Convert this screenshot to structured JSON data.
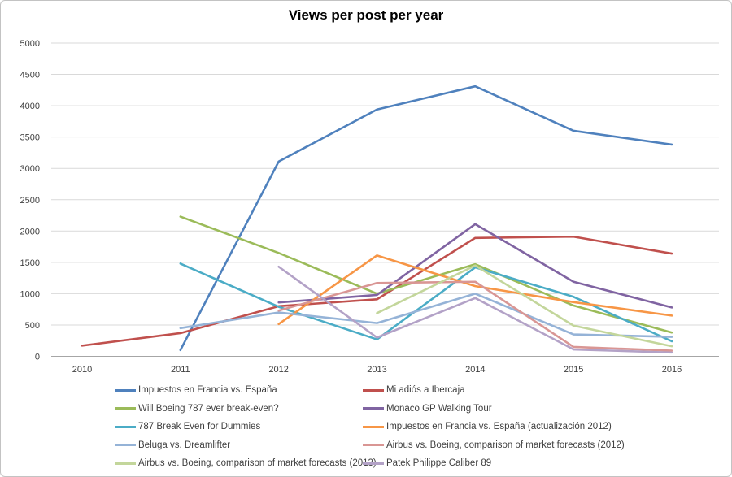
{
  "chart_data": {
    "type": "line",
    "title": "Views per post per year",
    "xlabel": "",
    "ylabel": "",
    "categories": [
      "2010",
      "2011",
      "2012",
      "2013",
      "2014",
      "2015",
      "2016"
    ],
    "ylim": [
      0,
      5000
    ],
    "ytick_step": 500,
    "grid": "horizontal",
    "legend_position": "bottom, two columns, row-major",
    "series": [
      {
        "name": "Impuestos en Francia vs. España",
        "color": "#4F81BD",
        "values": [
          null,
          100,
          3110,
          3940,
          4310,
          3600,
          3380
        ]
      },
      {
        "name": "Mi adiós a Ibercaja",
        "color": "#C0504D",
        "values": [
          170,
          370,
          800,
          910,
          1890,
          1910,
          1640
        ]
      },
      {
        "name": "Will Boeing 787 ever break-even?",
        "color": "#9BBB59",
        "values": [
          null,
          2230,
          1650,
          1000,
          1470,
          810,
          380
        ]
      },
      {
        "name": "Monaco GP Walking Tour",
        "color": "#8064A2",
        "values": [
          null,
          null,
          860,
          980,
          2110,
          1190,
          780
        ]
      },
      {
        "name": "787 Break Even for Dummies",
        "color": "#4BACC6",
        "values": [
          null,
          1480,
          790,
          270,
          1420,
          950,
          240
        ]
      },
      {
        "name": "Impuestos en Francia vs. España (actualización 2012)",
        "color": "#F79646",
        "values": [
          null,
          null,
          515,
          1610,
          1120,
          865,
          650
        ]
      },
      {
        "name": "Beluga vs. Dreamlifter",
        "color": "#95B3D7",
        "values": [
          null,
          450,
          700,
          530,
          1000,
          350,
          310
        ]
      },
      {
        "name": "Airbus vs. Boeing, comparison of market forecasts (2012)",
        "color": "#D99694",
        "values": [
          null,
          null,
          730,
          1170,
          1190,
          150,
          90
        ]
      },
      {
        "name": "Airbus vs. Boeing, comparison of market forecasts (2013)",
        "color": "#C3D69B",
        "values": [
          null,
          null,
          null,
          690,
          1450,
          490,
          160
        ]
      },
      {
        "name": "Patek Philippe Caliber 89",
        "color": "#B3A2C7",
        "values": [
          null,
          null,
          1430,
          300,
          930,
          110,
          60
        ]
      }
    ]
  },
  "colors": {
    "background": "#ffffff",
    "frame_border": "#c3c3c3",
    "gridline": "#d9d9d9",
    "axis_line": "#a6a6a6",
    "tick_label": "#404040",
    "title": "#000000"
  }
}
